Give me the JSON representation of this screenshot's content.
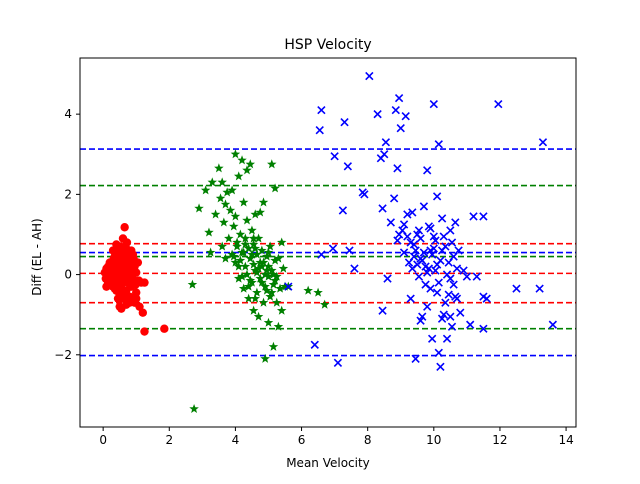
{
  "chart_data": {
    "type": "scatter",
    "title": "HSP Velocity",
    "xlabel": "Mean Velocity",
    "ylabel": "Diff (EL - AH)",
    "xlim": [
      -0.7,
      14.3
    ],
    "ylim": [
      -3.8,
      5.4
    ],
    "x_ticks": [
      0,
      2,
      4,
      6,
      8,
      10,
      12,
      14
    ],
    "y_ticks": [
      -2,
      0,
      2,
      4
    ],
    "grid": false,
    "legend": "none",
    "series": [
      {
        "color": "#ff0000",
        "marker": "circle",
        "points": [
          [
            0.05,
            0.05
          ],
          [
            0.08,
            -0.1
          ],
          [
            0.1,
            0.15
          ],
          [
            0.12,
            -0.05
          ],
          [
            0.15,
            0.2
          ],
          [
            0.18,
            0.0
          ],
          [
            0.2,
            -0.15
          ],
          [
            0.22,
            0.1
          ],
          [
            0.25,
            0.3
          ],
          [
            0.25,
            -0.25
          ],
          [
            0.28,
            0.05
          ],
          [
            0.3,
            0.2
          ],
          [
            0.3,
            -0.3
          ],
          [
            0.32,
            0.4
          ],
          [
            0.35,
            -0.1
          ],
          [
            0.35,
            0.1
          ],
          [
            0.38,
            0.25
          ],
          [
            0.4,
            -0.4
          ],
          [
            0.4,
            0.5
          ],
          [
            0.42,
            0.0
          ],
          [
            0.45,
            -0.2
          ],
          [
            0.45,
            0.35
          ],
          [
            0.48,
            0.6
          ],
          [
            0.5,
            -0.5
          ],
          [
            0.5,
            0.15
          ],
          [
            0.5,
            -0.05
          ],
          [
            0.52,
            0.7
          ],
          [
            0.55,
            -0.3
          ],
          [
            0.55,
            0.3
          ],
          [
            0.58,
            0.45
          ],
          [
            0.6,
            -0.6
          ],
          [
            0.6,
            0.05
          ],
          [
            0.62,
            0.2
          ],
          [
            0.65,
            -0.15
          ],
          [
            0.65,
            0.55
          ],
          [
            0.68,
            0.35
          ],
          [
            0.7,
            -0.4
          ],
          [
            0.7,
            0.1
          ],
          [
            0.72,
            0.8
          ],
          [
            0.75,
            -0.2
          ],
          [
            0.75,
            0.25
          ],
          [
            0.78,
            0.5
          ],
          [
            0.8,
            -0.55
          ],
          [
            0.8,
            0.0
          ],
          [
            0.82,
            0.3
          ],
          [
            0.85,
            -0.3
          ],
          [
            0.85,
            0.6
          ],
          [
            0.88,
            0.15
          ],
          [
            0.9,
            -0.1
          ],
          [
            0.92,
            0.4
          ],
          [
            0.95,
            -0.7
          ],
          [
            0.95,
            0.2
          ],
          [
            0.98,
            -0.25
          ],
          [
            1.0,
            0.05
          ],
          [
            1.0,
            -0.45
          ],
          [
            1.05,
            0.3
          ],
          [
            1.08,
            -0.15
          ],
          [
            1.1,
            -0.8
          ],
          [
            0.5,
            -0.8
          ],
          [
            0.55,
            -0.85
          ],
          [
            0.6,
            0.9
          ],
          [
            0.65,
            1.18
          ],
          [
            0.7,
            -0.75
          ],
          [
            0.45,
            -0.6
          ],
          [
            0.35,
            0.45
          ],
          [
            0.3,
            0.6
          ],
          [
            0.4,
            0.75
          ],
          [
            0.2,
            0.3
          ],
          [
            0.15,
            -0.2
          ],
          [
            0.1,
            -0.3
          ],
          [
            0.6,
            0.45
          ],
          [
            0.7,
            0.65
          ],
          [
            0.9,
            0.5
          ],
          [
            1.0,
            -0.6
          ],
          [
            1.15,
            -0.2
          ],
          [
            1.2,
            -0.95
          ],
          [
            1.25,
            -0.2
          ],
          [
            1.25,
            -1.42
          ],
          [
            1.85,
            -1.35
          ],
          [
            0.55,
            0.0
          ],
          [
            0.45,
            0.05
          ],
          [
            0.65,
            -0.05
          ],
          [
            0.75,
            -0.1
          ],
          [
            0.85,
            -0.05
          ],
          [
            0.25,
            0.0
          ],
          [
            0.35,
            -0.35
          ],
          [
            0.5,
            0.4
          ],
          [
            0.6,
            -0.45
          ],
          [
            0.8,
            -0.7
          ]
        ],
        "hlines": [
          0.77,
          0.03,
          -0.7
        ]
      },
      {
        "color": "#008000",
        "marker": "star",
        "points": [
          [
            2.75,
            -3.35
          ],
          [
            2.7,
            -0.25
          ],
          [
            2.9,
            1.65
          ],
          [
            3.1,
            2.1
          ],
          [
            3.2,
            1.05
          ],
          [
            3.25,
            0.55
          ],
          [
            3.3,
            2.3
          ],
          [
            3.4,
            1.5
          ],
          [
            3.5,
            2.65
          ],
          [
            3.55,
            1.9
          ],
          [
            3.6,
            0.7
          ],
          [
            3.6,
            2.3
          ],
          [
            3.65,
            1.3
          ],
          [
            3.7,
            0.4
          ],
          [
            3.7,
            1.75
          ],
          [
            3.75,
            2.05
          ],
          [
            3.8,
            0.9
          ],
          [
            3.85,
            1.6
          ],
          [
            3.9,
            0.5
          ],
          [
            3.9,
            2.1
          ],
          [
            3.95,
            1.2
          ],
          [
            4.0,
            3.0
          ],
          [
            4.0,
            0.3
          ],
          [
            4.0,
            1.45
          ],
          [
            4.05,
            0.8
          ],
          [
            4.1,
            2.45
          ],
          [
            4.1,
            -0.1
          ],
          [
            4.15,
            1.0
          ],
          [
            4.2,
            2.85
          ],
          [
            4.2,
            0.55
          ],
          [
            4.25,
            1.8
          ],
          [
            4.25,
            -0.35
          ],
          [
            4.3,
            0.9
          ],
          [
            4.3,
            0.2
          ],
          [
            4.35,
            2.6
          ],
          [
            4.35,
            1.35
          ],
          [
            4.4,
            -0.6
          ],
          [
            4.4,
            0.65
          ],
          [
            4.45,
            2.75
          ],
          [
            4.45,
            0.4
          ],
          [
            4.5,
            1.1
          ],
          [
            4.5,
            -0.2
          ],
          [
            4.55,
            0.75
          ],
          [
            4.55,
            -0.9
          ],
          [
            4.6,
            0.1
          ],
          [
            4.6,
            1.5
          ],
          [
            4.65,
            0.5
          ],
          [
            4.65,
            -0.45
          ],
          [
            4.7,
            0.9
          ],
          [
            4.7,
            -1.05
          ],
          [
            4.75,
            0.3
          ],
          [
            4.75,
            1.55
          ],
          [
            4.8,
            -0.2
          ],
          [
            4.8,
            0.6
          ],
          [
            4.85,
            -0.7
          ],
          [
            4.85,
            1.8
          ],
          [
            4.9,
            0.0
          ],
          [
            4.9,
            -2.1
          ],
          [
            4.95,
            0.45
          ],
          [
            4.95,
            -0.4
          ],
          [
            5.0,
            0.2
          ],
          [
            5.0,
            -1.2
          ],
          [
            5.05,
            0.7
          ],
          [
            5.05,
            -0.55
          ],
          [
            5.1,
            2.75
          ],
          [
            5.1,
            0.1
          ],
          [
            5.15,
            -0.25
          ],
          [
            5.15,
            -1.8
          ],
          [
            5.2,
            2.15
          ],
          [
            5.2,
            0.35
          ],
          [
            5.25,
            -0.7
          ],
          [
            5.25,
            -0.05
          ],
          [
            5.3,
            -1.3
          ],
          [
            5.3,
            0.4
          ],
          [
            5.35,
            -0.35
          ],
          [
            5.4,
            0.8
          ],
          [
            5.4,
            -0.9
          ],
          [
            5.45,
            0.15
          ],
          [
            5.5,
            -0.3
          ],
          [
            5.6,
            -0.3
          ],
          [
            6.2,
            -0.4
          ],
          [
            6.5,
            -0.45
          ],
          [
            6.7,
            -0.75
          ],
          [
            4.35,
            0.0
          ],
          [
            4.45,
            -0.15
          ],
          [
            4.55,
            0.25
          ],
          [
            4.65,
            0.05
          ],
          [
            4.75,
            -0.1
          ],
          [
            4.85,
            0.3
          ],
          [
            4.95,
            0.1
          ],
          [
            4.25,
            0.55
          ],
          [
            4.15,
            0.35
          ],
          [
            4.05,
            0.7
          ],
          [
            3.95,
            0.45
          ],
          [
            4.6,
            0.65
          ],
          [
            4.8,
            0.2
          ],
          [
            5.0,
            -0.05
          ],
          [
            4.4,
            -0.3
          ],
          [
            4.5,
            0.5
          ],
          [
            4.7,
            0.15
          ],
          [
            5.1,
            -0.45
          ],
          [
            5.2,
            -0.15
          ],
          [
            4.3,
            0.75
          ],
          [
            4.9,
            -0.3
          ],
          [
            5.0,
            0.55
          ],
          [
            4.1,
            0.2
          ],
          [
            4.2,
            -0.05
          ],
          [
            4.6,
            -0.6
          ],
          [
            5.15,
            0.0
          ],
          [
            4.55,
            0.9
          ]
        ],
        "hlines": [
          2.22,
          0.45,
          -1.35
        ]
      },
      {
        "color": "#0000ff",
        "marker": "x",
        "points": [
          [
            5.6,
            -0.3
          ],
          [
            6.4,
            -1.75
          ],
          [
            6.55,
            3.6
          ],
          [
            6.6,
            4.1
          ],
          [
            6.6,
            0.5
          ],
          [
            6.95,
            0.65
          ],
          [
            7.0,
            2.95
          ],
          [
            7.1,
            -2.2
          ],
          [
            7.25,
            1.6
          ],
          [
            7.3,
            3.8
          ],
          [
            7.4,
            2.7
          ],
          [
            7.45,
            0.6
          ],
          [
            7.6,
            0.15
          ],
          [
            7.85,
            2.05
          ],
          [
            7.9,
            2.0
          ],
          [
            8.05,
            4.95
          ],
          [
            8.3,
            4.0
          ],
          [
            8.4,
            2.9
          ],
          [
            8.45,
            1.65
          ],
          [
            8.45,
            -0.9
          ],
          [
            8.5,
            3.0
          ],
          [
            8.55,
            3.3
          ],
          [
            8.6,
            -0.1
          ],
          [
            8.7,
            1.3
          ],
          [
            8.8,
            1.9
          ],
          [
            8.85,
            4.1
          ],
          [
            8.9,
            2.65
          ],
          [
            8.9,
            0.85
          ],
          [
            8.95,
            4.4
          ],
          [
            9.0,
            3.65
          ],
          [
            9.05,
            1.1
          ],
          [
            9.1,
            0.55
          ],
          [
            9.15,
            3.95
          ],
          [
            9.2,
            1.5
          ],
          [
            9.25,
            0.3
          ],
          [
            9.3,
            -0.6
          ],
          [
            9.35,
            1.55
          ],
          [
            9.4,
            0.75
          ],
          [
            9.45,
            -2.1
          ],
          [
            9.5,
            1.0
          ],
          [
            9.55,
            -0.05
          ],
          [
            9.6,
            0.4
          ],
          [
            9.65,
            -1.05
          ],
          [
            9.7,
            1.7
          ],
          [
            9.75,
            0.2
          ],
          [
            9.8,
            2.6
          ],
          [
            9.8,
            -0.8
          ],
          [
            9.85,
            1.2
          ],
          [
            9.9,
            0.6
          ],
          [
            9.95,
            -1.6
          ],
          [
            10.0,
            4.25
          ],
          [
            10.0,
            0.95
          ],
          [
            10.05,
            0.1
          ],
          [
            10.1,
            -0.45
          ],
          [
            10.1,
            1.95
          ],
          [
            10.15,
            3.25
          ],
          [
            10.2,
            0.35
          ],
          [
            10.2,
            -2.3
          ],
          [
            10.25,
            1.4
          ],
          [
            10.3,
            -1.0
          ],
          [
            10.35,
            0.7
          ],
          [
            10.4,
            0.0
          ],
          [
            10.45,
            -0.5
          ],
          [
            10.5,
            1.1
          ],
          [
            10.55,
            -1.3
          ],
          [
            10.6,
            0.45
          ],
          [
            10.65,
            1.3
          ],
          [
            10.7,
            -0.6
          ],
          [
            10.75,
            0.6
          ],
          [
            10.8,
            -0.95
          ],
          [
            10.9,
            0.1
          ],
          [
            11.0,
            -0.05
          ],
          [
            11.1,
            -1.25
          ],
          [
            11.2,
            1.45
          ],
          [
            11.3,
            -0.05
          ],
          [
            11.5,
            1.45
          ],
          [
            11.5,
            -0.55
          ],
          [
            11.5,
            -1.35
          ],
          [
            11.6,
            -0.6
          ],
          [
            11.95,
            4.25
          ],
          [
            12.5,
            -0.35
          ],
          [
            13.2,
            -0.35
          ],
          [
            13.3,
            3.3
          ],
          [
            13.6,
            -1.25
          ],
          [
            9.3,
            0.8
          ],
          [
            9.4,
            0.45
          ],
          [
            9.5,
            0.25
          ],
          [
            9.6,
            0.9
          ],
          [
            9.7,
            0.55
          ],
          [
            9.75,
            -0.25
          ],
          [
            9.85,
            0.15
          ],
          [
            9.9,
            -0.35
          ],
          [
            9.95,
            0.5
          ],
          [
            10.05,
            0.85
          ],
          [
            10.15,
            -0.2
          ],
          [
            10.25,
            0.6
          ],
          [
            10.35,
            -0.7
          ],
          [
            10.45,
            0.3
          ],
          [
            10.55,
            0.8
          ],
          [
            10.6,
            -0.25
          ],
          [
            10.7,
            0.15
          ],
          [
            10.25,
            -1.1
          ],
          [
            10.4,
            -1.6
          ],
          [
            10.5,
            -1.05
          ],
          [
            10.15,
            -1.95
          ],
          [
            9.6,
            -1.15
          ],
          [
            9.1,
            1.25
          ],
          [
            8.95,
            1.0
          ],
          [
            9.2,
            0.95
          ],
          [
            9.35,
            0.15
          ],
          [
            9.45,
            0.6
          ],
          [
            9.55,
            1.1
          ],
          [
            9.65,
            0.35
          ],
          [
            9.8,
            0.05
          ],
          [
            9.9,
            1.15
          ],
          [
            10.0,
            0.65
          ],
          [
            10.1,
            0.25
          ],
          [
            10.3,
            0.95
          ],
          [
            10.5,
            -0.1
          ],
          [
            10.65,
            -0.55
          ]
        ],
        "hlines": [
          3.13,
          0.55,
          -2.02
        ]
      }
    ]
  }
}
